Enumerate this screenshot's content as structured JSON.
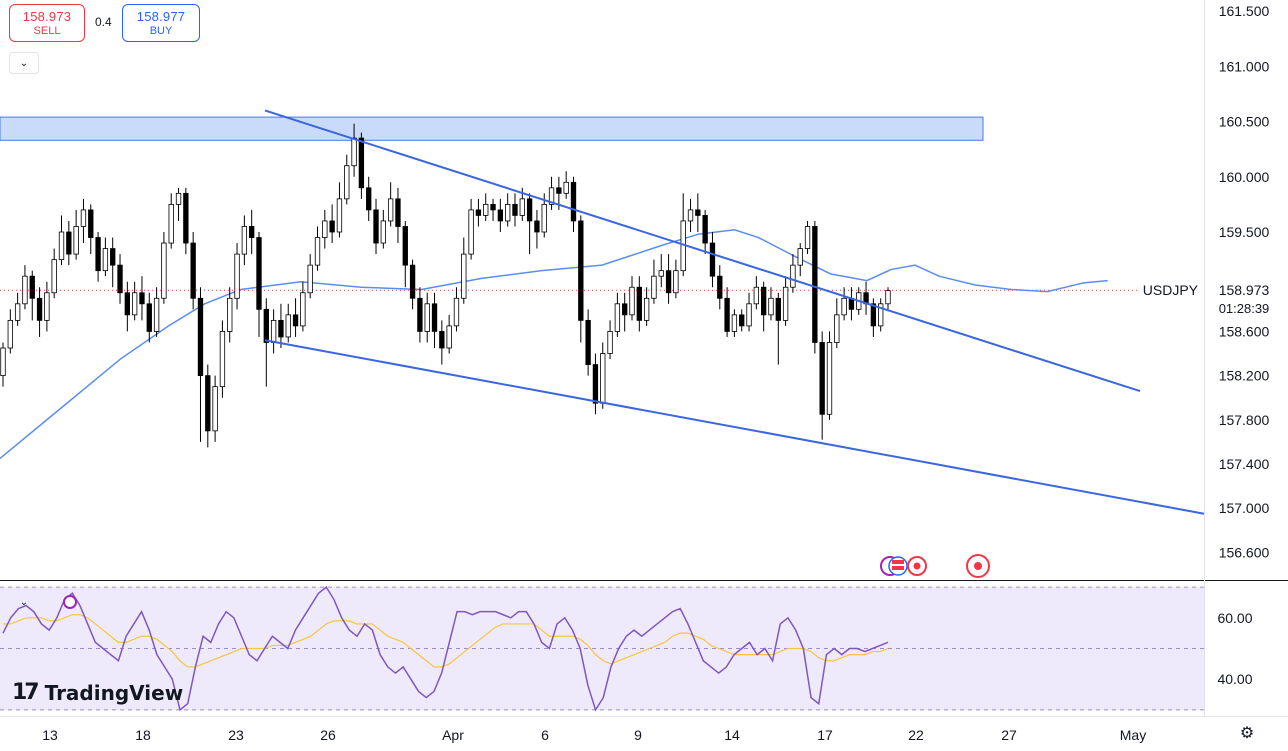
{
  "trade": {
    "sell_price": "158.973",
    "sell_label": "SELL",
    "buy_price": "158.977",
    "buy_label": "BUY",
    "spread": "0.4"
  },
  "symbol": "USDJPY",
  "brand": "TradingView",
  "icons": {
    "collapse": "chevron-down-icon",
    "settings": "gear-icon",
    "logo": "tradingview-logo-icon",
    "events": [
      "us-flag-icon",
      "red-dot-event-icon"
    ]
  },
  "colors": {
    "up": "#ffffff",
    "down": "#000000",
    "ma": "#5b8def",
    "channel": "#3a66e0",
    "zone": "#c3d6fb",
    "rsi": "#7e57c2",
    "rsi_ma": "#f5c542",
    "last_price": "#f23645"
  },
  "chart_data": [
    {
      "type": "candlestick",
      "symbol": "USDJPY",
      "last_price": "158.973",
      "countdown": "01:28:39",
      "x_ticks": [
        "13",
        "18",
        "23",
        "26",
        "Apr",
        "6",
        "9",
        "14",
        "17",
        "22",
        "27",
        "May"
      ],
      "y_ticks": [
        "161.500",
        "161.000",
        "160.500",
        "160.000",
        "159.500",
        "158.600",
        "158.200",
        "157.800",
        "157.400",
        "157.000",
        "156.600"
      ],
      "ylim": [
        156.35,
        161.6
      ],
      "resistance_zone": [
        160.33,
        160.54
      ],
      "channel_upper": [
        [
          0.0,
          160.6
        ],
        [
          1.0,
          158.06
        ]
      ],
      "channel_lower": [
        [
          0.0,
          158.52
        ],
        [
          1.0,
          156.95
        ]
      ],
      "moving_average": [
        [
          0.0,
          157.45
        ],
        [
          0.05,
          157.9
        ],
        [
          0.1,
          158.35
        ],
        [
          0.14,
          158.65
        ],
        [
          0.17,
          158.85
        ],
        [
          0.2,
          158.98
        ],
        [
          0.25,
          159.05
        ],
        [
          0.3,
          159.0
        ],
        [
          0.35,
          158.98
        ],
        [
          0.4,
          159.08
        ],
        [
          0.45,
          159.15
        ],
        [
          0.5,
          159.2
        ],
        [
          0.55,
          159.38
        ],
        [
          0.58,
          159.48
        ],
        [
          0.61,
          159.52
        ],
        [
          0.63,
          159.45
        ],
        [
          0.66,
          159.28
        ],
        [
          0.69,
          159.12
        ],
        [
          0.72,
          159.06
        ],
        [
          0.74,
          159.16
        ],
        [
          0.76,
          159.2
        ],
        [
          0.78,
          159.1
        ],
        [
          0.81,
          159.02
        ],
        [
          0.84,
          158.98
        ],
        [
          0.87,
          158.96
        ],
        [
          0.9,
          159.04
        ],
        [
          0.92,
          159.06
        ]
      ],
      "candles": [
        [
          158.2,
          158.45,
          158.1,
          158.5
        ],
        [
          158.45,
          158.7,
          158.4,
          158.8
        ],
        [
          158.7,
          158.85,
          158.65,
          158.95
        ],
        [
          158.85,
          159.1,
          158.8,
          159.2
        ],
        [
          159.1,
          158.9,
          158.7,
          159.15
        ],
        [
          158.9,
          158.7,
          158.55,
          159.0
        ],
        [
          158.7,
          158.95,
          158.6,
          159.05
        ],
        [
          158.95,
          159.25,
          158.9,
          159.35
        ],
        [
          159.25,
          159.5,
          159.2,
          159.65
        ],
        [
          159.5,
          159.3,
          159.2,
          159.6
        ],
        [
          159.3,
          159.55,
          159.25,
          159.7
        ],
        [
          159.55,
          159.7,
          159.4,
          159.8
        ],
        [
          159.7,
          159.45,
          159.3,
          159.75
        ],
        [
          159.45,
          159.15,
          159.05,
          159.5
        ],
        [
          159.15,
          159.35,
          159.1,
          159.45
        ],
        [
          159.35,
          159.2,
          159.0,
          159.45
        ],
        [
          159.2,
          158.95,
          158.85,
          159.3
        ],
        [
          158.95,
          158.75,
          158.6,
          159.05
        ],
        [
          158.75,
          158.95,
          158.7,
          159.05
        ],
        [
          158.95,
          158.85,
          158.7,
          159.1
        ],
        [
          158.85,
          158.6,
          158.5,
          158.95
        ],
        [
          158.6,
          158.9,
          158.55,
          159.0
        ],
        [
          158.9,
          159.4,
          158.85,
          159.5
        ],
        [
          159.4,
          159.75,
          159.35,
          159.85
        ],
        [
          159.75,
          159.85,
          159.6,
          159.9
        ],
        [
          159.85,
          159.4,
          159.3,
          159.9
        ],
        [
          159.4,
          158.9,
          158.8,
          159.5
        ],
        [
          158.9,
          158.2,
          157.6,
          159.0
        ],
        [
          158.2,
          157.7,
          157.55,
          158.3
        ],
        [
          157.7,
          158.1,
          157.6,
          158.2
        ],
        [
          158.1,
          158.6,
          158.0,
          158.7
        ],
        [
          158.6,
          158.9,
          158.5,
          159.0
        ],
        [
          158.9,
          159.3,
          158.8,
          159.4
        ],
        [
          159.3,
          159.55,
          159.2,
          159.65
        ],
        [
          159.55,
          159.45,
          159.3,
          159.7
        ],
        [
          159.45,
          158.8,
          158.55,
          159.5
        ],
        [
          158.8,
          158.5,
          158.1,
          158.9
        ],
        [
          158.5,
          158.7,
          158.4,
          158.8
        ],
        [
          158.7,
          158.55,
          158.45,
          158.85
        ],
        [
          158.55,
          158.75,
          158.5,
          158.85
        ],
        [
          158.75,
          158.65,
          158.55,
          158.9
        ],
        [
          158.65,
          158.95,
          158.6,
          159.05
        ],
        [
          158.95,
          159.2,
          158.9,
          159.3
        ],
        [
          159.2,
          159.45,
          159.15,
          159.55
        ],
        [
          159.45,
          159.6,
          159.35,
          159.7
        ],
        [
          159.6,
          159.5,
          159.4,
          159.75
        ],
        [
          159.5,
          159.8,
          159.45,
          159.95
        ],
        [
          159.8,
          160.1,
          159.75,
          160.2
        ],
        [
          160.1,
          160.35,
          160.0,
          160.48
        ],
        [
          160.35,
          159.9,
          159.8,
          160.4
        ],
        [
          159.9,
          159.7,
          159.6,
          160.0
        ],
        [
          159.7,
          159.4,
          159.3,
          159.8
        ],
        [
          159.4,
          159.6,
          159.35,
          159.7
        ],
        [
          159.6,
          159.8,
          159.55,
          159.95
        ],
        [
          159.8,
          159.55,
          159.4,
          159.9
        ],
        [
          159.55,
          159.2,
          159.0,
          159.6
        ],
        [
          159.2,
          158.9,
          158.8,
          159.25
        ],
        [
          158.9,
          158.6,
          158.5,
          159.0
        ],
        [
          158.6,
          158.85,
          158.5,
          158.95
        ],
        [
          158.85,
          158.6,
          158.45,
          158.95
        ],
        [
          158.6,
          158.45,
          158.3,
          158.7
        ],
        [
          158.45,
          158.65,
          158.4,
          158.75
        ],
        [
          158.65,
          158.9,
          158.6,
          159.0
        ],
        [
          158.9,
          159.3,
          158.85,
          159.45
        ],
        [
          159.3,
          159.7,
          159.25,
          159.8
        ],
        [
          159.7,
          159.65,
          159.55,
          159.8
        ],
        [
          159.65,
          159.75,
          159.6,
          159.85
        ],
        [
          159.75,
          159.7,
          159.6,
          159.8
        ],
        [
          159.7,
          159.6,
          159.5,
          159.8
        ],
        [
          159.6,
          159.75,
          159.55,
          159.85
        ],
        [
          159.75,
          159.65,
          159.55,
          159.85
        ],
        [
          159.65,
          159.8,
          159.6,
          159.9
        ],
        [
          159.8,
          159.6,
          159.3,
          159.85
        ],
        [
          159.6,
          159.5,
          159.35,
          159.7
        ],
        [
          159.5,
          159.75,
          159.45,
          159.85
        ],
        [
          159.75,
          159.9,
          159.7,
          160.0
        ],
        [
          159.9,
          159.85,
          159.7,
          160.0
        ],
        [
          159.85,
          159.95,
          159.8,
          160.05
        ],
        [
          159.95,
          159.6,
          159.5,
          160.0
        ],
        [
          159.6,
          158.7,
          158.5,
          159.65
        ],
        [
          158.7,
          158.3,
          158.2,
          158.8
        ],
        [
          158.3,
          157.95,
          157.85,
          158.4
        ],
        [
          157.95,
          158.4,
          157.9,
          158.5
        ],
        [
          158.4,
          158.6,
          158.35,
          158.7
        ],
        [
          158.6,
          158.85,
          158.55,
          158.95
        ],
        [
          158.85,
          158.75,
          158.6,
          158.95
        ],
        [
          158.75,
          159.0,
          158.7,
          159.1
        ],
        [
          159.0,
          158.7,
          158.6,
          159.1
        ],
        [
          158.7,
          158.9,
          158.65,
          159.0
        ],
        [
          158.9,
          159.1,
          158.85,
          159.25
        ],
        [
          159.1,
          159.15,
          159.0,
          159.3
        ],
        [
          159.15,
          158.95,
          158.85,
          159.3
        ],
        [
          158.95,
          159.15,
          158.9,
          159.25
        ],
        [
          159.15,
          159.6,
          159.1,
          159.85
        ],
        [
          159.6,
          159.7,
          159.5,
          159.8
        ],
        [
          159.7,
          159.65,
          159.5,
          159.85
        ],
        [
          159.65,
          159.4,
          159.3,
          159.7
        ],
        [
          159.4,
          159.1,
          159.0,
          159.5
        ],
        [
          159.1,
          158.9,
          158.8,
          159.2
        ],
        [
          158.9,
          158.6,
          158.55,
          159.0
        ],
        [
          158.6,
          158.75,
          158.55,
          158.8
        ],
        [
          158.75,
          158.65,
          158.6,
          158.8
        ],
        [
          158.65,
          158.85,
          158.6,
          158.95
        ],
        [
          158.85,
          159.0,
          158.8,
          159.1
        ],
        [
          159.0,
          158.75,
          158.6,
          159.05
        ],
        [
          158.75,
          158.9,
          158.7,
          159.0
        ],
        [
          158.9,
          158.7,
          158.3,
          158.95
        ],
        [
          158.7,
          159.0,
          158.65,
          159.1
        ],
        [
          159.0,
          159.2,
          158.95,
          159.3
        ],
        [
          159.2,
          159.35,
          159.1,
          159.4
        ],
        [
          159.35,
          159.55,
          159.3,
          159.6
        ],
        [
          159.55,
          158.5,
          158.4,
          159.6
        ],
        [
          158.5,
          157.85,
          157.62,
          158.6
        ],
        [
          157.85,
          158.5,
          157.8,
          158.6
        ],
        [
          158.5,
          158.75,
          158.45,
          158.9
        ],
        [
          158.75,
          158.9,
          158.7,
          159.0
        ],
        [
          158.9,
          158.8,
          158.7,
          159.0
        ],
        [
          158.8,
          158.95,
          158.75,
          159.0
        ],
        [
          158.95,
          158.85,
          158.75,
          159.05
        ],
        [
          158.85,
          158.65,
          158.55,
          158.9
        ],
        [
          158.65,
          158.85,
          158.6,
          158.9
        ],
        [
          158.85,
          158.97,
          158.8,
          159.0
        ]
      ]
    },
    {
      "type": "line",
      "name": "RSI",
      "y_ticks": [
        "60.00",
        "40.00"
      ],
      "ylim": [
        28,
        72
      ],
      "band": [
        30,
        70
      ],
      "midline": 50,
      "rsi": [
        55,
        60,
        63,
        64,
        62,
        58,
        56,
        60,
        66,
        68,
        64,
        58,
        52,
        50,
        48,
        46,
        54,
        58,
        62,
        56,
        48,
        44,
        40,
        30,
        32,
        44,
        54,
        52,
        58,
        62,
        60,
        54,
        48,
        46,
        50,
        54,
        52,
        50,
        56,
        60,
        64,
        68,
        70,
        66,
        60,
        56,
        54,
        58,
        56,
        48,
        44,
        42,
        44,
        40,
        36,
        34,
        36,
        42,
        52,
        62,
        62,
        61,
        62,
        62,
        62,
        61,
        60,
        62,
        62,
        58,
        52,
        50,
        58,
        60,
        56,
        50,
        38,
        30,
        34,
        44,
        50,
        54,
        56,
        54,
        56,
        58,
        60,
        62,
        63,
        58,
        52,
        46,
        44,
        42,
        44,
        48,
        50,
        52,
        48,
        50,
        46,
        58,
        60,
        56,
        50,
        34,
        32,
        48,
        50,
        48,
        50,
        50,
        49,
        50,
        51,
        52
      ],
      "rsi_ma": [
        58,
        58,
        59,
        60,
        60,
        60,
        59,
        59,
        60,
        61,
        61,
        60,
        58,
        56,
        54,
        52,
        52,
        53,
        54,
        54,
        53,
        51,
        49,
        46,
        44,
        44,
        45,
        46,
        47,
        48,
        49,
        50,
        50,
        50,
        50,
        51,
        51,
        51,
        52,
        53,
        54,
        56,
        58,
        59,
        59,
        59,
        58,
        58,
        58,
        56,
        54,
        53,
        52,
        50,
        48,
        46,
        44,
        44,
        45,
        47,
        49,
        51,
        53,
        55,
        57,
        58,
        58,
        58,
        58,
        58,
        56,
        54,
        54,
        54,
        54,
        53,
        51,
        48,
        46,
        45,
        46,
        47,
        48,
        49,
        50,
        51,
        52,
        54,
        55,
        55,
        54,
        53,
        51,
        50,
        49,
        48,
        48,
        48,
        48,
        48,
        48,
        49,
        50,
        50,
        50,
        49,
        47,
        46,
        46,
        47,
        48,
        48,
        48,
        49,
        49,
        50
      ]
    }
  ]
}
